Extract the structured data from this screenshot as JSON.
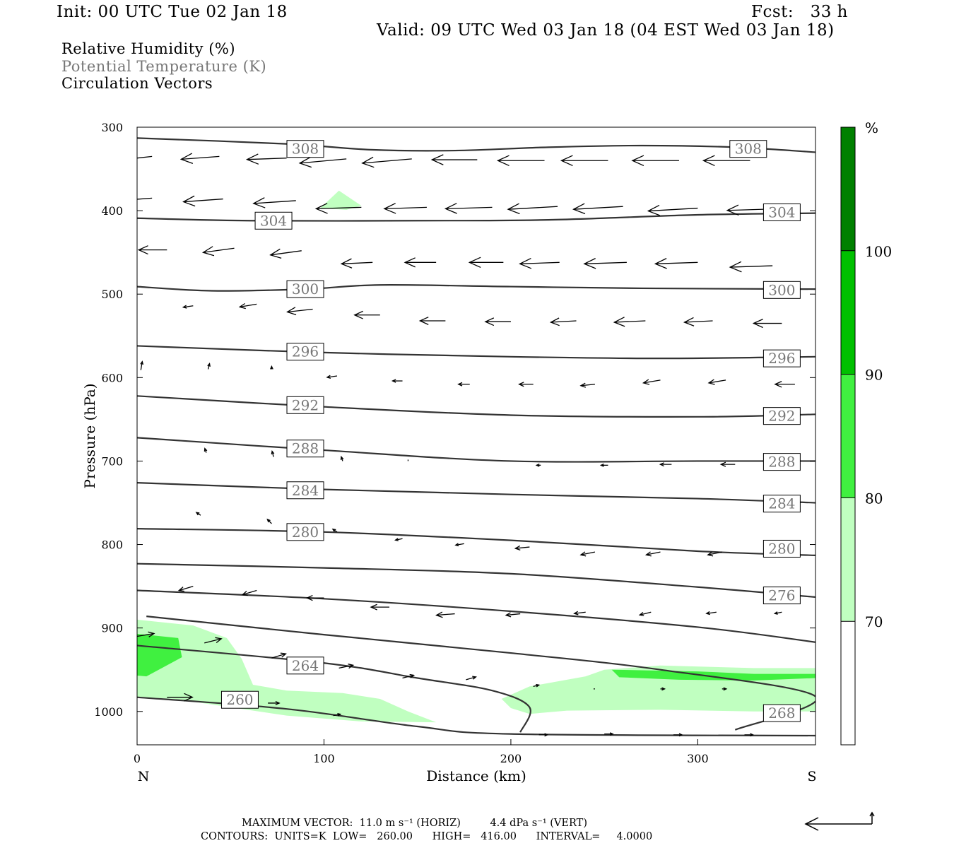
{
  "header": {
    "init": "Init: 00 UTC Tue 02 Jan 18",
    "fcst": "Fcst:   33 h",
    "valid": "Valid: 09 UTC Wed 03 Jan 18 (04 EST Wed 03 Jan 18)"
  },
  "legend": {
    "rh": "Relative Humidity (%)",
    "theta": "Potential Temperature (K)",
    "vectors": "Circulation Vectors"
  },
  "colors": {
    "rh_70": "#c0ffc0",
    "rh_80": "#40f040",
    "rh_90": "#00c000",
    "rh_100": "#008000",
    "contour": "#333333",
    "theta_label_text": "#777777"
  },
  "chart_data": {
    "type": "cross-section",
    "xlabel": "Distance (km)",
    "ylabel": "Pressure (hPa)",
    "xlim": [
      0,
      363
    ],
    "ylim": [
      1040,
      300
    ],
    "x_ticks": [
      0,
      100,
      200,
      300
    ],
    "y_ticks": [
      300,
      400,
      500,
      600,
      700,
      800,
      900,
      1000
    ],
    "x_end_labels": [
      "N",
      "S"
    ],
    "colorbar": {
      "unit": "%",
      "levels": [
        70,
        80,
        90,
        100
      ],
      "colors": [
        "#ffffff",
        "#c0ffc0",
        "#40f040",
        "#00c000",
        "#008000"
      ]
    },
    "theta_contours": [
      {
        "value": 308,
        "points": [
          [
            0,
            313
          ],
          [
            80,
            320
          ],
          [
            125,
            327
          ],
          [
            170,
            328
          ],
          [
            220,
            324
          ],
          [
            270,
            322
          ],
          [
            320,
            324
          ],
          [
            363,
            330
          ]
        ]
      },
      {
        "value": 304,
        "points": [
          [
            0,
            409
          ],
          [
            60,
            412
          ],
          [
            150,
            412
          ],
          [
            220,
            411
          ],
          [
            300,
            405
          ],
          [
            363,
            403
          ]
        ]
      },
      {
        "value": 300,
        "points": [
          [
            0,
            491
          ],
          [
            40,
            496
          ],
          [
            90,
            494
          ],
          [
            130,
            489
          ],
          [
            200,
            491
          ],
          [
            270,
            493
          ],
          [
            363,
            494
          ]
        ]
      },
      {
        "value": 296,
        "points": [
          [
            0,
            562
          ],
          [
            100,
            570
          ],
          [
            200,
            575
          ],
          [
            280,
            577
          ],
          [
            363,
            575
          ]
        ]
      },
      {
        "value": 292,
        "points": [
          [
            0,
            622
          ],
          [
            100,
            635
          ],
          [
            200,
            645
          ],
          [
            300,
            647
          ],
          [
            363,
            644
          ]
        ]
      },
      {
        "value": 288,
        "points": [
          [
            0,
            672
          ],
          [
            100,
            687
          ],
          [
            200,
            700
          ],
          [
            300,
            700
          ],
          [
            363,
            700
          ]
        ]
      },
      {
        "value": 284,
        "points": [
          [
            0,
            726
          ],
          [
            100,
            734
          ],
          [
            200,
            740
          ],
          [
            300,
            745
          ],
          [
            363,
            750
          ]
        ]
      },
      {
        "value": 280,
        "points": [
          [
            0,
            781
          ],
          [
            100,
            785
          ],
          [
            200,
            795
          ],
          [
            300,
            808
          ],
          [
            363,
            813
          ]
        ]
      },
      {
        "value": 276,
        "points": [
          [
            0,
            823
          ],
          [
            100,
            828
          ],
          [
            200,
            835
          ],
          [
            300,
            851
          ],
          [
            363,
            863
          ]
        ]
      },
      {
        "value": 272,
        "points": [
          [
            0,
            855
          ],
          [
            100,
            865
          ],
          [
            200,
            880
          ],
          [
            300,
            899
          ],
          [
            363,
            917
          ]
        ]
      },
      {
        "value": 268,
        "points": [
          [
            5,
            886
          ],
          [
            100,
            908
          ],
          [
            200,
            930
          ],
          [
            280,
            950
          ],
          [
            363,
            982
          ],
          [
            320,
            1022
          ]
        ]
      },
      {
        "value": 264,
        "points": [
          [
            0,
            921
          ],
          [
            100,
            942
          ],
          [
            150,
            960
          ],
          [
            190,
            975
          ],
          [
            210,
            995
          ],
          [
            205,
            1025
          ]
        ]
      },
      {
        "value": 260,
        "points": [
          [
            0,
            983
          ],
          [
            80,
            997
          ],
          [
            150,
            1018
          ],
          [
            200,
            1027
          ],
          [
            363,
            1029
          ]
        ]
      }
    ],
    "theta_labels": [
      {
        "value": "308",
        "x": 90,
        "p": 326
      },
      {
        "value": "308",
        "x": 327,
        "p": 326
      },
      {
        "value": "304",
        "x": 73,
        "p": 412
      },
      {
        "value": "304",
        "x": 345,
        "p": 402
      },
      {
        "value": "300",
        "x": 90,
        "p": 494
      },
      {
        "value": "300",
        "x": 345,
        "p": 495
      },
      {
        "value": "296",
        "x": 90,
        "p": 569
      },
      {
        "value": "296",
        "x": 345,
        "p": 577
      },
      {
        "value": "292",
        "x": 90,
        "p": 633
      },
      {
        "value": "292",
        "x": 345,
        "p": 646
      },
      {
        "value": "288",
        "x": 90,
        "p": 685
      },
      {
        "value": "288",
        "x": 345,
        "p": 701
      },
      {
        "value": "284",
        "x": 90,
        "p": 735
      },
      {
        "value": "284",
        "x": 345,
        "p": 751
      },
      {
        "value": "280",
        "x": 90,
        "p": 785
      },
      {
        "value": "280",
        "x": 345,
        "p": 805
      },
      {
        "value": "276",
        "x": 345,
        "p": 861
      },
      {
        "value": "264",
        "x": 90,
        "p": 945
      },
      {
        "value": "260",
        "x": 55,
        "p": 986
      },
      {
        "value": "268",
        "x": 345,
        "p": 1002
      }
    ],
    "rh_regions": [
      {
        "level": 70,
        "points": [
          [
            0,
            890
          ],
          [
            30,
            897
          ],
          [
            48,
            912
          ],
          [
            56,
            937
          ],
          [
            62,
            968
          ],
          [
            80,
            975
          ],
          [
            110,
            978
          ],
          [
            130,
            985
          ],
          [
            145,
            1000
          ],
          [
            160,
            1013
          ],
          [
            120,
            1012
          ],
          [
            80,
            1005
          ],
          [
            50,
            995
          ],
          [
            20,
            985
          ],
          [
            0,
            983
          ]
        ]
      },
      {
        "level": 70,
        "points": [
          [
            195,
            985
          ],
          [
            210,
            970
          ],
          [
            230,
            962
          ],
          [
            240,
            958
          ],
          [
            250,
            950
          ],
          [
            280,
            945
          ],
          [
            330,
            948
          ],
          [
            363,
            948
          ],
          [
            363,
            1000
          ],
          [
            330,
            1000
          ],
          [
            280,
            998
          ],
          [
            230,
            999
          ],
          [
            210,
            1003
          ],
          [
            200,
            996
          ]
        ]
      },
      {
        "level": 70,
        "points": [
          [
            98,
            397
          ],
          [
            108,
            376
          ],
          [
            120,
            394
          ],
          [
            112,
            399
          ]
        ]
      },
      {
        "level": 80,
        "points": [
          [
            0,
            907
          ],
          [
            22,
            912
          ],
          [
            24,
            935
          ],
          [
            5,
            958
          ],
          [
            0,
            957
          ]
        ]
      },
      {
        "level": 80,
        "points": [
          [
            254,
            950
          ],
          [
            300,
            952
          ],
          [
            330,
            955
          ],
          [
            363,
            955
          ],
          [
            363,
            960
          ],
          [
            330,
            963
          ],
          [
            290,
            962
          ],
          [
            258,
            959
          ]
        ]
      }
    ],
    "vectors": [
      [
        8,
        335,
        -27,
        3
      ],
      [
        44,
        335,
        -27,
        2
      ],
      [
        80,
        337,
        -28,
        1
      ],
      [
        112,
        338,
        -33,
        3
      ],
      [
        147,
        338,
        -35,
        3
      ],
      [
        182,
        339,
        -32,
        0
      ],
      [
        218,
        340,
        -33,
        0
      ],
      [
        252,
        340,
        -33,
        0
      ],
      [
        290,
        340,
        -33,
        0
      ],
      [
        328,
        340,
        -33,
        0
      ],
      [
        8,
        385,
        -27,
        2
      ],
      [
        46,
        386,
        -28,
        2
      ],
      [
        85,
        388,
        -30,
        2
      ],
      [
        120,
        396,
        -32,
        1
      ],
      [
        155,
        396,
        -30,
        1
      ],
      [
        190,
        396,
        -33,
        1
      ],
      [
        225,
        395,
        -35,
        2
      ],
      [
        260,
        395,
        -35,
        2
      ],
      [
        300,
        397,
        -35,
        2
      ],
      [
        340,
        398,
        -32,
        1
      ],
      [
        16,
        447,
        -20,
        0
      ],
      [
        52,
        445,
        -22,
        3
      ],
      [
        88,
        448,
        -22,
        3
      ],
      [
        126,
        462,
        -22,
        1
      ],
      [
        160,
        462,
        -22,
        0
      ],
      [
        196,
        462,
        -24,
        0
      ],
      [
        226,
        462,
        -28,
        1
      ],
      [
        262,
        462,
        -30,
        1
      ],
      [
        300,
        462,
        -30,
        1
      ],
      [
        340,
        466,
        -30,
        1
      ],
      [
        30,
        514,
        -7,
        1
      ],
      [
        64,
        512,
        -12,
        2
      ],
      [
        94,
        518,
        -18,
        2
      ],
      [
        130,
        525,
        -18,
        0
      ],
      [
        165,
        532,
        -18,
        0
      ],
      [
        200,
        533,
        -18,
        0
      ],
      [
        235,
        532,
        -18,
        1
      ],
      [
        272,
        532,
        -22,
        1
      ],
      [
        308,
        532,
        -20,
        1
      ],
      [
        345,
        535,
        -20,
        0
      ],
      [
        2,
        591,
        1,
        -6
      ],
      [
        38,
        590,
        1,
        -4
      ],
      [
        72,
        590,
        0,
        -2
      ],
      [
        107,
        598,
        -7,
        1
      ],
      [
        142,
        604,
        -7,
        0
      ],
      [
        178,
        608,
        -8,
        0
      ],
      [
        212,
        608,
        -10,
        0
      ],
      [
        245,
        608,
        -10,
        1
      ],
      [
        280,
        603,
        -12,
        2
      ],
      [
        315,
        603,
        -12,
        2
      ],
      [
        352,
        608,
        -14,
        0
      ],
      [
        37,
        690,
        -1,
        -3
      ],
      [
        73,
        695,
        -1,
        -4
      ],
      [
        110,
        700,
        -1,
        -3
      ],
      [
        145,
        700,
        0,
        -1
      ],
      [
        182,
        703,
        0,
        0
      ],
      [
        216,
        705,
        -3,
        0
      ],
      [
        252,
        705,
        -5,
        0
      ],
      [
        286,
        704,
        -8,
        0
      ],
      [
        320,
        704,
        -10,
        0
      ],
      [
        355,
        703,
        -10,
        0
      ],
      [
        34,
        765,
        -3,
        -2
      ],
      [
        72,
        775,
        -3,
        -3
      ],
      [
        107,
        785,
        -3,
        -2
      ],
      [
        142,
        793,
        -5,
        1
      ],
      [
        175,
        799,
        -6,
        1
      ],
      [
        210,
        803,
        -10,
        1
      ],
      [
        245,
        809,
        -10,
        2
      ],
      [
        280,
        809,
        -10,
        2
      ],
      [
        313,
        809,
        -10,
        2
      ],
      [
        350,
        810,
        -10,
        1
      ],
      [
        30,
        850,
        -10,
        3
      ],
      [
        64,
        855,
        -10,
        3
      ],
      [
        100,
        864,
        -12,
        0
      ],
      [
        135,
        875,
        -13,
        0
      ],
      [
        170,
        883,
        -13,
        1
      ],
      [
        205,
        883,
        -10,
        1
      ],
      [
        240,
        881,
        -8,
        1
      ],
      [
        275,
        881,
        -8,
        2
      ],
      [
        310,
        881,
        -7,
        1
      ],
      [
        345,
        881,
        -5,
        1
      ],
      [
        0,
        910,
        12,
        -2
      ],
      [
        36,
        918,
        12,
        -3
      ],
      [
        72,
        936,
        10,
        -3
      ],
      [
        108,
        948,
        10,
        -2
      ],
      [
        142,
        960,
        8,
        -2
      ],
      [
        176,
        962,
        7,
        -2
      ],
      [
        212,
        970,
        4,
        -1
      ],
      [
        245,
        973,
        -1,
        0
      ],
      [
        280,
        973,
        3,
        0
      ],
      [
        313,
        973,
        3,
        0
      ],
      [
        16,
        983,
        18,
        0
      ],
      [
        70,
        990,
        8,
        0
      ],
      [
        105,
        1005,
        5,
        -1
      ],
      [
        180,
        1025,
        0,
        0
      ],
      [
        215,
        1028,
        6,
        0
      ],
      [
        250,
        1027,
        6,
        0
      ],
      [
        287,
        1028,
        6,
        0
      ],
      [
        325,
        1028,
        6,
        0
      ]
    ],
    "footer": {
      "max_vector": "MAXIMUM VECTOR:  11.0 m s⁻¹ (HORIZ)         4.4 dPa s⁻¹ (VERT)",
      "contours": "CONTOURS:  UNITS=K  LOW=   260.00      HIGH=   416.00      INTERVAL=     4.0000"
    }
  }
}
